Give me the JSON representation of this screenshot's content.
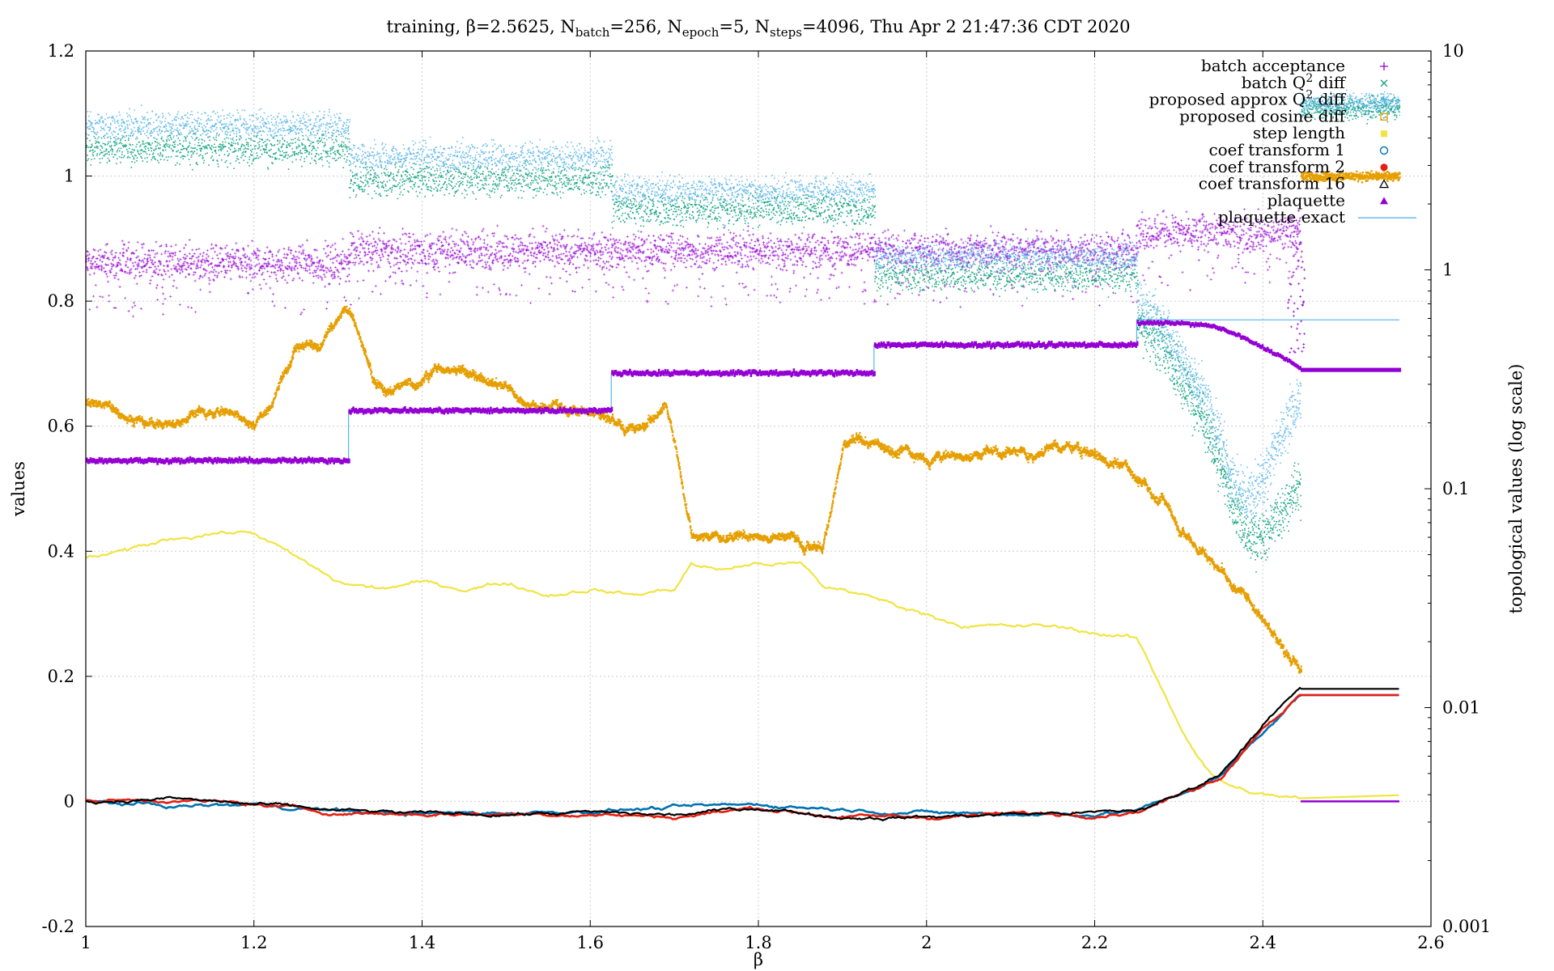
{
  "chart_data": {
    "type": "scatter",
    "title": {
      "prefix": "training, β=2.5625, N",
      "batch_sub": "batch",
      "batch_val": "=256, N",
      "epoch_sub": "epoch",
      "epoch_val": "=5, N",
      "steps_sub": "steps",
      "steps_val": "=4096, Thu Apr  2 21:47:36 CDT 2020"
    },
    "xlabel": "β",
    "ylabel": "values",
    "y2label": "topological values (log scale)",
    "xlim": [
      1,
      2.6
    ],
    "ylim": [
      -0.2,
      1.2
    ],
    "y2lim": [
      0.001,
      10
    ],
    "y2scale": "log",
    "grid": true,
    "legend_position": "top-right",
    "x_ticks": [
      "1",
      "1.2",
      "1.4",
      "1.6",
      "1.8",
      "2",
      "2.2",
      "2.4",
      "2.6"
    ],
    "y_ticks": [
      "-0.2",
      "0",
      "0.2",
      "0.4",
      "0.6",
      "0.8",
      "1",
      "1.2"
    ],
    "y2_ticks": [
      "0.001",
      "0.01",
      "0.1",
      "1",
      "10"
    ],
    "legend": [
      {
        "label": "batch acceptance",
        "marker": "plus",
        "color": "#9400d3"
      },
      {
        "label": "batch Q",
        "sup": "2",
        "suffix": " diff",
        "marker": "cross",
        "color": "#009e73"
      },
      {
        "label": "proposed approx Q",
        "sup": "2",
        "suffix": " diff",
        "marker": "star",
        "color": "#56b4e9"
      },
      {
        "label": "proposed cosine diff",
        "marker": "open-square",
        "color": "#e69f00"
      },
      {
        "label": "step length",
        "marker": "filled-square",
        "color": "#f0e442"
      },
      {
        "label": "coef transform 1",
        "marker": "open-circle",
        "color": "#0072b2"
      },
      {
        "label": "coef transform 2",
        "marker": "filled-circle",
        "color": "#e51e10"
      },
      {
        "label": "coef transform 16",
        "marker": "open-triangle",
        "color": "#000000"
      },
      {
        "label": "plaquette",
        "marker": "filled-triangle",
        "color": "#9400d3"
      },
      {
        "label": "plaquette exact",
        "marker": "line",
        "color": "#56b4e9"
      }
    ],
    "segments": [
      {
        "x0": 1.0,
        "x1": 1.3125,
        "acceptance": 0.86,
        "plaquette": 0.545,
        "plaquette_exact": 0.545,
        "batch_q2_diff": 3.6,
        "proposed_q2_diff": 4.6
      },
      {
        "x0": 1.3125,
        "x1": 1.625,
        "acceptance": 0.88,
        "plaquette": 0.625,
        "plaquette_exact": 0.625,
        "batch_q2_diff": 2.6,
        "proposed_q2_diff": 3.3
      },
      {
        "x0": 1.625,
        "x1": 1.9375,
        "acceptance": 0.88,
        "plaquette": 0.685,
        "plaquette_exact": 0.685,
        "batch_q2_diff": 1.9,
        "proposed_q2_diff": 2.3
      },
      {
        "x0": 1.9375,
        "x1": 2.25,
        "acceptance": 0.88,
        "plaquette": 0.73,
        "plaquette_exact": 0.73,
        "batch_q2_diff": 0.95,
        "proposed_q2_diff": 1.15
      },
      {
        "x0": 2.25,
        "x1": 2.445,
        "acceptance": 0.91,
        "plaquette": 0.76,
        "plaquette_exact": 0.77,
        "batch_q2_diff": 0.6,
        "proposed_q2_diff": 0.7
      }
    ],
    "plaquette_curve": {
      "x": [
        2.25,
        2.3,
        2.34,
        2.37,
        2.4,
        2.43,
        2.445,
        2.5625
      ],
      "y": [
        0.765,
        0.765,
        0.76,
        0.745,
        0.725,
        0.705,
        0.69,
        0.69
      ]
    },
    "plaquette_exact_tail": {
      "x": [
        2.445,
        2.5625
      ],
      "y": [
        0.77,
        0.77
      ]
    },
    "q2_dip": {
      "x": [
        2.25,
        2.28,
        2.31,
        2.34,
        2.36,
        2.38,
        2.4,
        2.42,
        2.445
      ],
      "batch": [
        0.6,
        0.45,
        0.28,
        0.16,
        0.09,
        0.06,
        0.06,
        0.08,
        0.1
      ],
      "proposed": [
        0.7,
        0.55,
        0.35,
        0.2,
        0.12,
        0.09,
        0.11,
        0.17,
        0.27
      ]
    },
    "q2_tail": {
      "x": [
        2.445,
        2.5625
      ],
      "batch": 5.5,
      "proposed": 5.8
    },
    "cosine_diff": {
      "x": [
        1.0,
        1.05,
        1.1,
        1.15,
        1.2,
        1.22,
        1.25,
        1.28,
        1.3125,
        1.34,
        1.38,
        1.42,
        1.46,
        1.5,
        1.54,
        1.58,
        1.625,
        1.64,
        1.66,
        1.69,
        1.72,
        1.76,
        1.8,
        1.84,
        1.875,
        1.9,
        1.9375,
        1.96,
        2.0,
        2.05,
        2.1,
        2.15,
        2.2,
        2.25,
        2.28,
        2.32,
        2.36,
        2.4,
        2.445
      ],
      "y": [
        0.64,
        0.62,
        0.6,
        0.64,
        0.6,
        0.64,
        0.75,
        0.74,
        0.8,
        0.68,
        0.66,
        0.7,
        0.69,
        0.68,
        0.64,
        0.64,
        0.6,
        0.58,
        0.6,
        0.64,
        0.42,
        0.42,
        0.42,
        0.43,
        0.41,
        0.58,
        0.58,
        0.57,
        0.56,
        0.55,
        0.56,
        0.57,
        0.56,
        0.52,
        0.48,
        0.42,
        0.36,
        0.3,
        0.22
      ],
      "tail_y2": 2.7
    },
    "step_length": {
      "x": [
        1.0,
        1.05,
        1.1,
        1.15,
        1.2,
        1.25,
        1.3,
        1.35,
        1.4,
        1.45,
        1.5,
        1.55,
        1.6,
        1.65,
        1.7,
        1.72,
        1.75,
        1.8,
        1.85,
        1.88,
        1.9,
        1.95,
        2.0,
        2.05,
        2.1,
        2.15,
        2.2,
        2.25,
        2.28,
        2.31,
        2.34,
        2.37,
        2.4,
        2.445,
        2.5625
      ],
      "y": [
        0.39,
        0.4,
        0.42,
        0.43,
        0.43,
        0.39,
        0.35,
        0.34,
        0.35,
        0.34,
        0.35,
        0.33,
        0.34,
        0.33,
        0.34,
        0.38,
        0.37,
        0.38,
        0.38,
        0.34,
        0.34,
        0.32,
        0.3,
        0.28,
        0.28,
        0.28,
        0.27,
        0.26,
        0.18,
        0.1,
        0.04,
        0.02,
        0.01,
        0.005,
        0.01
      ]
    },
    "coef_transform_1": {
      "x": [
        1.0,
        1.1,
        1.2,
        1.3,
        1.4,
        1.5,
        1.6,
        1.7,
        1.8,
        1.9,
        2.0,
        2.1,
        2.2,
        2.25,
        2.3,
        2.35,
        2.4,
        2.445,
        2.5625
      ],
      "y": [
        0.0,
        -0.008,
        -0.005,
        -0.015,
        -0.02,
        -0.018,
        -0.015,
        -0.01,
        -0.005,
        -0.012,
        -0.018,
        -0.02,
        -0.02,
        -0.015,
        0.01,
        0.04,
        0.11,
        0.17,
        0.17
      ]
    },
    "coef_transform_2": {
      "x": [
        1.0,
        1.1,
        1.2,
        1.3,
        1.4,
        1.5,
        1.6,
        1.7,
        1.8,
        1.9,
        2.0,
        2.1,
        2.2,
        2.25,
        2.3,
        2.35,
        2.4,
        2.445,
        2.5625
      ],
      "y": [
        0.0,
        0.003,
        -0.005,
        -0.018,
        -0.02,
        -0.02,
        -0.02,
        -0.025,
        -0.01,
        -0.025,
        -0.025,
        -0.02,
        -0.02,
        -0.015,
        0.01,
        0.04,
        0.12,
        0.17,
        0.17
      ]
    },
    "coef_transform_16": {
      "x": [
        1.0,
        1.1,
        1.2,
        1.3,
        1.4,
        1.5,
        1.6,
        1.7,
        1.8,
        1.9,
        2.0,
        2.1,
        2.2,
        2.25,
        2.3,
        2.35,
        2.4,
        2.445,
        2.5625
      ],
      "y": [
        0.0,
        0.005,
        -0.005,
        -0.015,
        -0.02,
        -0.02,
        -0.018,
        -0.022,
        -0.01,
        -0.025,
        -0.025,
        -0.02,
        -0.018,
        -0.015,
        0.01,
        0.045,
        0.125,
        0.18,
        0.18
      ]
    }
  }
}
